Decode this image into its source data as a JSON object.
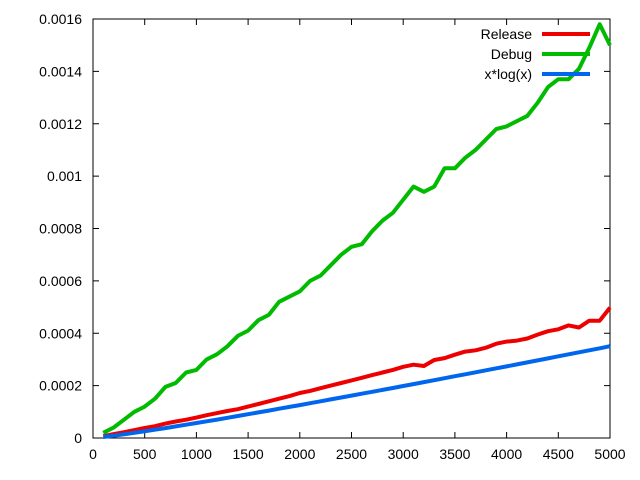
{
  "chart_data": {
    "type": "line",
    "title": "",
    "xlabel": "",
    "ylabel": "",
    "xlim": [
      0,
      5000
    ],
    "ylim": [
      0,
      0.0016
    ],
    "grid": false,
    "legend_position": "top-right",
    "x_ticks": [
      "0",
      "500",
      "1000",
      "1500",
      "2000",
      "2500",
      "3000",
      "3500",
      "4000",
      "4500",
      "5000"
    ],
    "y_ticks": [
      "0",
      "0.0002",
      "0.0004",
      "0.0006",
      "0.0008",
      "0.001",
      "0.0012",
      "0.0014",
      "0.0016"
    ],
    "x": [
      100,
      200,
      300,
      400,
      500,
      600,
      700,
      800,
      900,
      1000,
      1100,
      1200,
      1300,
      1400,
      1500,
      1600,
      1700,
      1800,
      1900,
      2000,
      2100,
      2200,
      2300,
      2400,
      2500,
      2600,
      2700,
      2800,
      2900,
      3000,
      3100,
      3200,
      3300,
      3400,
      3500,
      3600,
      3700,
      3800,
      3900,
      4000,
      4100,
      4200,
      4300,
      4400,
      4500,
      4600,
      4700,
      4800,
      4900,
      5000
    ],
    "series": [
      {
        "name": "Release",
        "color": "#ee0000",
        "values": [
          7e-06,
          1.5e-05,
          2.2e-05,
          3e-05,
          3.8e-05,
          4.5e-05,
          5.5e-05,
          6.3e-05,
          7e-05,
          7.8e-05,
          8.7e-05,
          9.5e-05,
          0.000103,
          0.00011,
          0.00012,
          0.00013,
          0.00014,
          0.00015,
          0.00016,
          0.000172,
          0.00018,
          0.00019,
          0.0002,
          0.00021,
          0.00022,
          0.00023,
          0.00024,
          0.00025,
          0.00026,
          0.000272,
          0.00028,
          0.000275,
          0.000298,
          0.000305,
          0.000318,
          0.00033,
          0.000335,
          0.000345,
          0.00036,
          0.000368,
          0.000372,
          0.00038,
          0.000395,
          0.000408,
          0.000415,
          0.00043,
          0.000422,
          0.000448,
          0.000448,
          0.000498
        ]
      },
      {
        "name": "Debug",
        "color": "#00bb00",
        "values": [
          2e-05,
          4e-05,
          7e-05,
          0.0001,
          0.00012,
          0.00015,
          0.000195,
          0.00021,
          0.00025,
          0.00026,
          0.0003,
          0.00032,
          0.00035,
          0.00039,
          0.00041,
          0.00045,
          0.00047,
          0.00052,
          0.00054,
          0.00056,
          0.0006,
          0.00062,
          0.00066,
          0.0007,
          0.00073,
          0.00074,
          0.00079,
          0.00083,
          0.00086,
          0.00091,
          0.00096,
          0.00094,
          0.00096,
          0.00103,
          0.00103,
          0.00107,
          0.0011,
          0.00114,
          0.00118,
          0.00119,
          0.00121,
          0.00123,
          0.00128,
          0.00134,
          0.00137,
          0.00137,
          0.00141,
          0.00149,
          0.00158,
          0.0015
        ]
      },
      {
        "name": "x*log(x)",
        "color": "#0066ee",
        "values": [
          3.9e-06,
          8.8e-06,
          1.41e-05,
          1.97e-05,
          2.56e-05,
          3.16e-05,
          3.79e-05,
          4.42e-05,
          5.06e-05,
          5.71e-05,
          6.37e-05,
          7.04e-05,
          7.72e-05,
          8.4e-05,
          9.08e-05,
          9.77e-05,
          0.0001047,
          0.0001117,
          0.0001187,
          0.0001258,
          0.000133,
          0.0001401,
          0.0001473,
          0.0001545,
          0.0001618,
          0.0001691,
          0.0001764,
          0.0001837,
          0.0001911,
          0.0001985,
          0.0002059,
          0.0002133,
          0.0002208,
          0.0002283,
          0.0002358,
          0.0002433,
          0.0002508,
          0.0002584,
          0.000266,
          0.0002736,
          0.0002812,
          0.0002888,
          0.0002965,
          0.0003041,
          0.0003118,
          0.0003195,
          0.0003272,
          0.0003349,
          0.0003427,
          0.0003505
        ]
      }
    ]
  }
}
